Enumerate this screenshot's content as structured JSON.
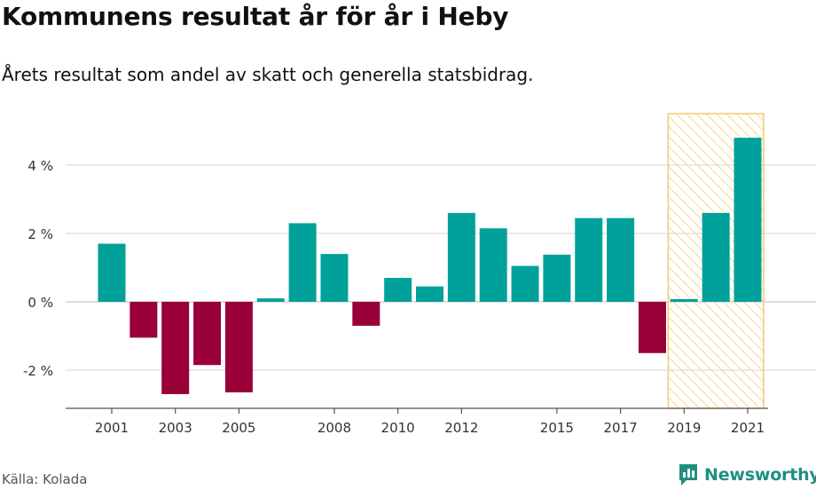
{
  "header": {
    "title": "Kommunens resultat år för år i Heby",
    "subtitle": "Årets resultat som andel av skatt och generella statsbidrag."
  },
  "footer": {
    "source": "Källa: Kolada",
    "brand": "Newsworthy",
    "brand_icon": "bar-chart-speech-bubble-icon"
  },
  "colors": {
    "positive": "#00a19a",
    "negative": "#990038",
    "highlight_stroke": "#f7c96b",
    "grid": "#dddddd",
    "axis": "#555555",
    "brand": "#1f8f82"
  },
  "chart_data": {
    "type": "bar",
    "categories": [
      "2001",
      "2002",
      "2003",
      "2004",
      "2005",
      "2006",
      "2007",
      "2008",
      "2009",
      "2010",
      "2011",
      "2012",
      "2013",
      "2014",
      "2015",
      "2016",
      "2017",
      "2018",
      "2019",
      "2020",
      "2021"
    ],
    "values": [
      1.7,
      -1.05,
      -2.7,
      -1.85,
      -2.65,
      0.1,
      2.3,
      1.4,
      -0.7,
      0.7,
      0.45,
      2.6,
      2.15,
      1.05,
      1.38,
      2.45,
      2.45,
      -1.5,
      0.08,
      2.6,
      4.8
    ],
    "x_tick_labels": [
      "2001",
      "2003",
      "2005",
      "2008",
      "2010",
      "2012",
      "2015",
      "2017",
      "2019",
      "2021"
    ],
    "y_ticks": [
      -2,
      0,
      2,
      4
    ],
    "y_tick_labels": [
      "-2 %",
      "0 %",
      "2 %",
      "4 %"
    ],
    "ylim": [
      -3.1,
      5.5
    ],
    "highlight_range": [
      "2019",
      "2021"
    ],
    "grid": true,
    "legend": "none"
  }
}
